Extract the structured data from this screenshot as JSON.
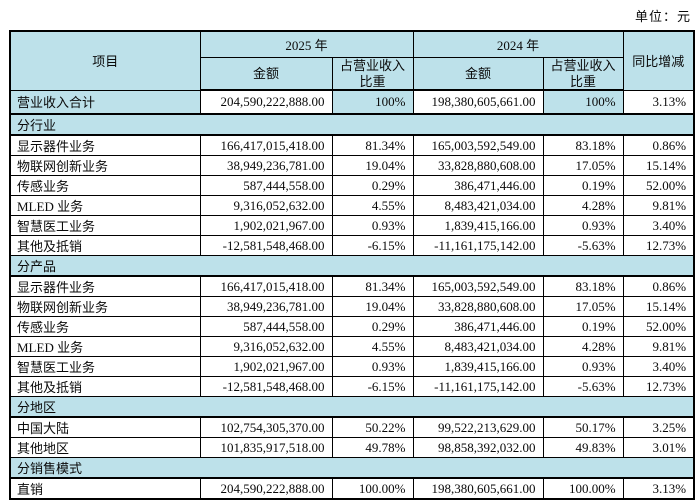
{
  "unit_label": "单位：元",
  "colors": {
    "band": "#bde1ea",
    "border": "#000000",
    "text": "#0a0a0a"
  },
  "table": {
    "headers": {
      "item": "项目",
      "year_2025": "2025 年",
      "year_2024": "2024 年",
      "amount": "金额",
      "proportion_line1": "占营业收入",
      "proportion_line2": "比重",
      "yoy": "同比增减"
    },
    "total_row": [
      "营业收入合计",
      "204,590,222,888.00",
      "100%",
      "198,380,605,661.00",
      "100%",
      "3.13%"
    ],
    "sections": [
      {
        "title": "分行业",
        "rows": [
          [
            "显示器件业务",
            "166,417,015,418.00",
            "81.34%",
            "165,003,592,549.00",
            "83.18%",
            "0.86%"
          ],
          [
            "物联网创新业务",
            "38,949,236,781.00",
            "19.04%",
            "33,828,880,608.00",
            "17.05%",
            "15.14%"
          ],
          [
            "传感业务",
            "587,444,558.00",
            "0.29%",
            "386,471,446.00",
            "0.19%",
            "52.00%"
          ],
          [
            "MLED 业务",
            "9,316,052,632.00",
            "4.55%",
            "8,483,421,034.00",
            "4.28%",
            "9.81%"
          ],
          [
            "智慧医工业务",
            "1,902,021,967.00",
            "0.93%",
            "1,839,415,166.00",
            "0.93%",
            "3.40%"
          ],
          [
            "其他及抵销",
            "-12,581,548,468.00",
            "-6.15%",
            "-11,161,175,142.00",
            "-5.63%",
            "12.73%"
          ]
        ]
      },
      {
        "title": "分产品",
        "rows": [
          [
            "显示器件业务",
            "166,417,015,418.00",
            "81.34%",
            "165,003,592,549.00",
            "83.18%",
            "0.86%"
          ],
          [
            "物联网创新业务",
            "38,949,236,781.00",
            "19.04%",
            "33,828,880,608.00",
            "17.05%",
            "15.14%"
          ],
          [
            "传感业务",
            "587,444,558.00",
            "0.29%",
            "386,471,446.00",
            "0.19%",
            "52.00%"
          ],
          [
            "MLED 业务",
            "9,316,052,632.00",
            "4.55%",
            "8,483,421,034.00",
            "4.28%",
            "9.81%"
          ],
          [
            "智慧医工业务",
            "1,902,021,967.00",
            "0.93%",
            "1,839,415,166.00",
            "0.93%",
            "3.40%"
          ],
          [
            "其他及抵销",
            "-12,581,548,468.00",
            "-6.15%",
            "-11,161,175,142.00",
            "-5.63%",
            "12.73%"
          ]
        ]
      },
      {
        "title": "分地区",
        "rows": [
          [
            "中国大陆",
            "102,754,305,370.00",
            "50.22%",
            "99,522,213,629.00",
            "50.17%",
            "3.25%"
          ],
          [
            "其他地区",
            "101,835,917,518.00",
            "49.78%",
            "98,858,392,032.00",
            "49.83%",
            "3.01%"
          ]
        ]
      },
      {
        "title": "分销售模式",
        "rows": [
          [
            "直销",
            "204,590,222,888.00",
            "100.00%",
            "198,380,605,661.00",
            "100.00%",
            "3.13%"
          ]
        ]
      }
    ]
  }
}
